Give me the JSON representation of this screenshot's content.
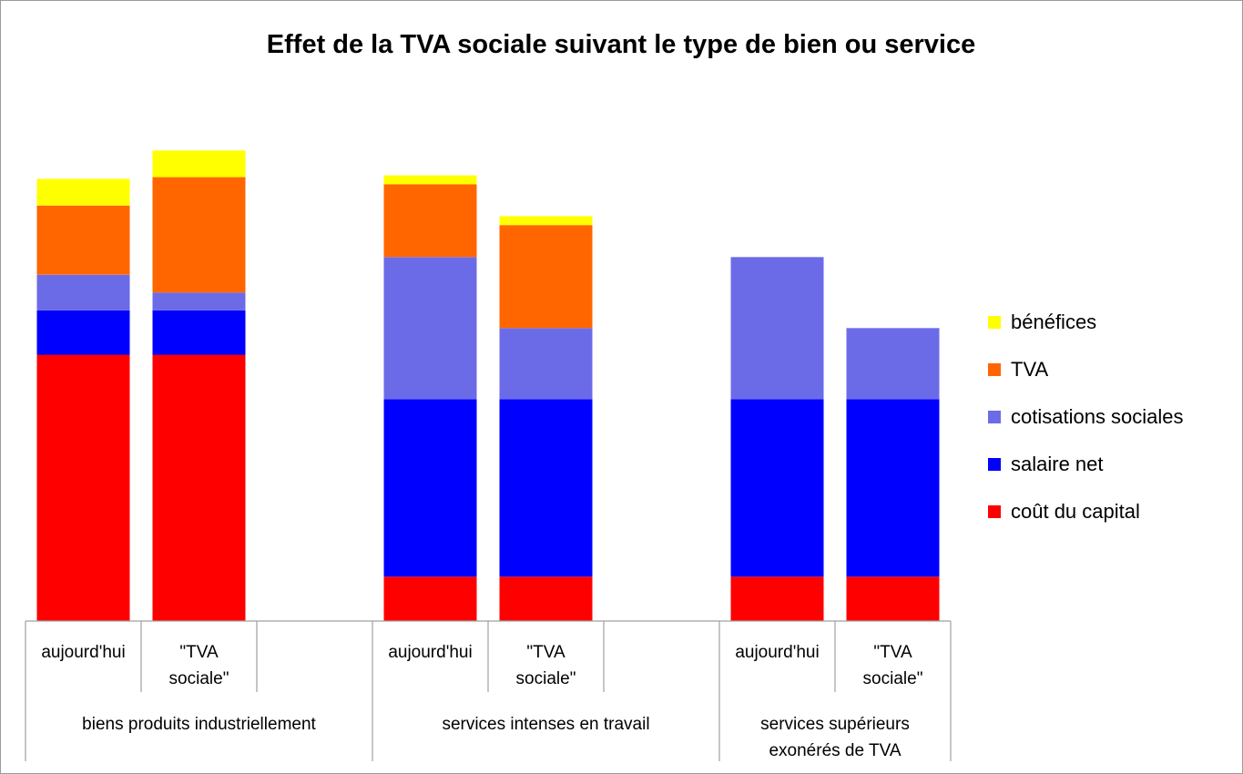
{
  "chart_data": {
    "type": "bar",
    "stacked": true,
    "title": "Effet de la TVA sociale suivant le type de bien ou service",
    "xlabel": "",
    "ylabel": "",
    "grid": false,
    "legend_position": "right",
    "groups": [
      {
        "label": "biens produits industriellement",
        "label_lines": [
          "biens produits industriellement"
        ],
        "bars": [
          "aujourd'hui",
          "\"TVA sociale\""
        ]
      },
      {
        "label": "services intenses en travail",
        "label_lines": [
          "services intenses en travail"
        ],
        "bars": [
          "aujourd'hui",
          "\"TVA sociale\""
        ]
      },
      {
        "label": "services supérieurs exonérés de TVA",
        "label_lines": [
          "services supérieurs",
          "exonérés de TVA"
        ],
        "bars": [
          "aujourd'hui",
          "\"TVA sociale\""
        ]
      }
    ],
    "categories": [
      "aujourd'hui",
      "\"TVA sociale\"",
      "",
      "aujourd'hui",
      "\"TVA sociale\"",
      "",
      "aujourd'hui",
      "\"TVA sociale\""
    ],
    "category_lines": [
      [
        "aujourd'hui"
      ],
      [
        "\"TVA",
        "sociale\""
      ],
      [],
      [
        "aujourd'hui"
      ],
      [
        "\"TVA",
        "sociale\""
      ],
      [],
      [
        "aujourd'hui"
      ],
      [
        "\"TVA",
        "sociale\""
      ]
    ],
    "series": [
      {
        "name": "coût du capital",
        "color": "#ff0000",
        "values": [
          150,
          150,
          null,
          25,
          25,
          null,
          25,
          25
        ]
      },
      {
        "name": "salaire net",
        "color": "#0000ff",
        "values": [
          25,
          25,
          null,
          100,
          100,
          null,
          100,
          100
        ]
      },
      {
        "name": "cotisations sociales",
        "color": "#6b6be8",
        "values": [
          20,
          10,
          null,
          80,
          40,
          null,
          80,
          40
        ]
      },
      {
        "name": "TVA",
        "color": "#ff6600",
        "values": [
          39,
          65,
          null,
          41,
          58,
          null,
          0,
          0
        ]
      },
      {
        "name": "bénéfices",
        "color": "#ffff00",
        "values": [
          15,
          15,
          null,
          5,
          5,
          null,
          0,
          0
        ]
      }
    ],
    "legend_order": [
      "bénéfices",
      "TVA",
      "cotisations sociales",
      "salaire net",
      "coût du capital"
    ],
    "ylim": [
      0,
      265
    ]
  }
}
